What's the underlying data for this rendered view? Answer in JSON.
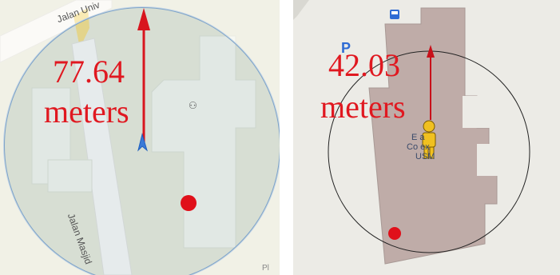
{
  "maps": [
    {
      "id": "left",
      "distance_value": "77.64",
      "distance_unit": "meters",
      "road_labels": [
        "Jalan Univ",
        "Jalan Masjid"
      ],
      "corner_label": "Pl",
      "colors": {
        "circle": "#7fa4c8",
        "arrow": "#d8151e",
        "dot": "#e0101a",
        "text": "#e01820",
        "land": "#dfe1c8",
        "building": "#eef0e2",
        "road": "#f5f3ee"
      }
    },
    {
      "id": "right",
      "distance_value": "42.03",
      "distance_unit": "meters",
      "poi_label_lines": [
        "E  a",
        "Co    ex",
        "USM"
      ],
      "parking_label": "P",
      "colors": {
        "circle": "#222222",
        "arrow": "#c8101a",
        "dot": "#e0101a",
        "text": "#e01820",
        "building": "#bfaca8",
        "bg": "#ecebe6",
        "person": "#f0c020"
      }
    }
  ]
}
